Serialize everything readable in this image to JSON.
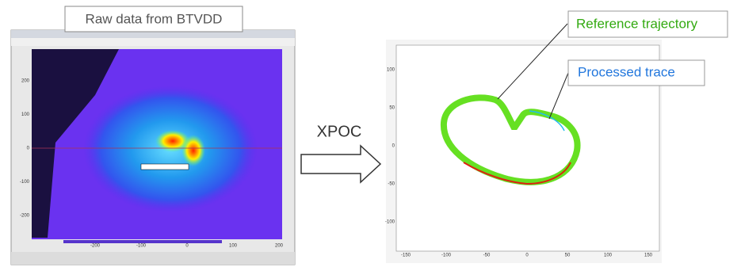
{
  "left_panel": {
    "label": "Raw data from BTVDD",
    "y_ticks": [
      "200",
      "100",
      "0",
      "-100",
      "-200"
    ],
    "x_ticks": [
      "-200",
      "-100",
      "0",
      "100",
      "200"
    ]
  },
  "arrow": {
    "label": "XPOC"
  },
  "right_panel": {
    "x_ticks": [
      "-150",
      "-100",
      "-50",
      "0",
      "50",
      "100",
      "150"
    ],
    "y_ticks": [
      "100",
      "50",
      "0",
      "-50",
      "-100"
    ]
  },
  "callouts": [
    {
      "label": "Reference trajectory"
    },
    {
      "label": "Processed trace"
    }
  ]
}
